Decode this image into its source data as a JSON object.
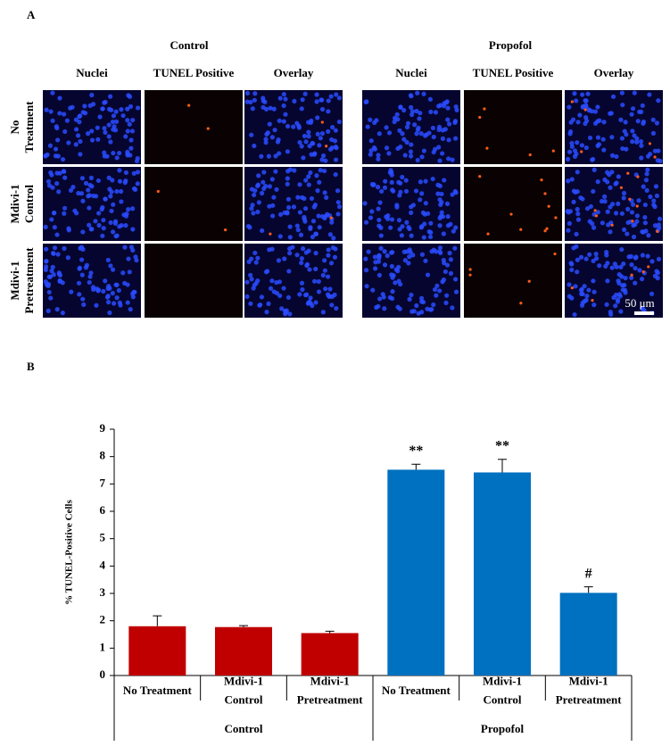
{
  "panel_a": {
    "label": "A",
    "groups": [
      "Control",
      "Propofol"
    ],
    "columns": [
      "Nuclei",
      "TUNEL Positive",
      "Overlay"
    ],
    "rows": [
      [
        "No",
        "Treatment"
      ],
      [
        "Mdivi-1",
        "Control"
      ],
      [
        "Mdivi-1",
        "Pretreatment"
      ]
    ],
    "scale_bar": "50 μm"
  },
  "panel_b": {
    "label": "B"
  },
  "chart_data": {
    "type": "bar",
    "ylabel": "% TUNEL-Positive Cells",
    "categories": [
      [
        "No Treatment"
      ],
      [
        "Mdivi-1",
        "Control"
      ],
      [
        "Mdivi-1",
        "Pretreatment"
      ],
      [
        "No Treatment"
      ],
      [
        "Mdivi-1",
        "Control"
      ],
      [
        "Mdivi-1",
        "Pretreatment"
      ]
    ],
    "groups": [
      "Control",
      "Propofol"
    ],
    "values": [
      1.8,
      1.77,
      1.55,
      7.52,
      7.42,
      3.02
    ],
    "errors": [
      0.38,
      0.05,
      0.07,
      0.2,
      0.48,
      0.22
    ],
    "colors": [
      "#c00000",
      "#c00000",
      "#c00000",
      "#0070c0",
      "#0070c0",
      "#0070c0"
    ],
    "annotations": [
      null,
      null,
      null,
      "**",
      "**",
      "#"
    ],
    "ylim": [
      0,
      9
    ],
    "yticks": [
      0,
      1,
      2,
      3,
      4,
      5,
      6,
      7,
      8,
      9
    ]
  }
}
